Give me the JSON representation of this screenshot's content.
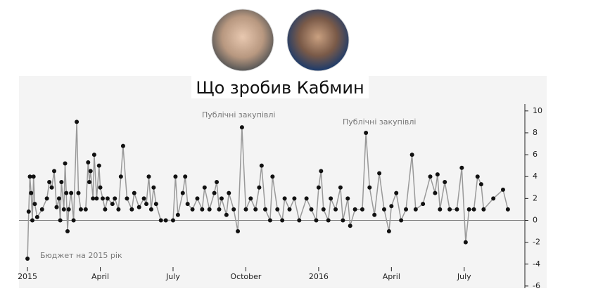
{
  "chart_data": {
    "type": "scatter-line",
    "title": "Що зробив Кабмин",
    "annotations": [
      "Бюджет на 2015 рік",
      "Публічні закупівлі",
      "Публічні закупівлі"
    ],
    "xlim": [
      -0.35,
      20.5
    ],
    "xticks": [
      {
        "value": 0,
        "label": "2015"
      },
      {
        "value": 3,
        "label": "April"
      },
      {
        "value": 6,
        "label": "July"
      },
      {
        "value": 9,
        "label": "October"
      },
      {
        "value": 12,
        "label": "2016"
      },
      {
        "value": 15,
        "label": "April"
      },
      {
        "value": 18,
        "label": "July"
      }
    ],
    "ylim": [
      -6.2,
      13.2
    ],
    "yticks": [
      -6,
      -4,
      -2,
      0,
      2,
      4,
      6,
      8,
      10
    ],
    "line_color": "#999999",
    "color": "#111111",
    "x": [
      0,
      0.05,
      0.1,
      0.15,
      0.2,
      0.25,
      0.3,
      0.4,
      0.6,
      0.8,
      0.9,
      1.0,
      1.1,
      1.2,
      1.3,
      1.35,
      1.4,
      1.5,
      1.55,
      1.6,
      1.65,
      1.7,
      1.8,
      1.9,
      2.03,
      2.1,
      2.2,
      2.4,
      2.5,
      2.55,
      2.6,
      2.7,
      2.75,
      2.85,
      2.95,
      3.0,
      3.1,
      3.2,
      3.3,
      3.5,
      3.6,
      3.75,
      3.85,
      3.94,
      4.1,
      4.3,
      4.4,
      4.6,
      4.8,
      4.9,
      5.0,
      5.1,
      5.2,
      5.3,
      5.5,
      5.7,
      6.0,
      6.1,
      6.2,
      6.4,
      6.5,
      6.6,
      6.8,
      7.0,
      7.2,
      7.3,
      7.5,
      7.7,
      7.8,
      7.9,
      8.0,
      8.2,
      8.3,
      8.5,
      8.67,
      8.84,
      9.0,
      9.2,
      9.4,
      9.55,
      9.65,
      9.8,
      10.0,
      10.1,
      10.3,
      10.5,
      10.6,
      10.8,
      11.0,
      11.2,
      11.5,
      11.7,
      11.9,
      12.0,
      12.1,
      12.2,
      12.4,
      12.5,
      12.7,
      12.9,
      13.0,
      13.2,
      13.3,
      13.5,
      13.8,
      13.95,
      14.1,
      14.3,
      14.5,
      14.7,
      14.9,
      15.0,
      15.2,
      15.4,
      15.6,
      15.85,
      16.0,
      16.3,
      16.6,
      16.8,
      16.9,
      17.0,
      17.2,
      17.4,
      17.7,
      17.9,
      18.06,
      18.2,
      18.4,
      18.55,
      18.7,
      18.8,
      19.2,
      19.6,
      19.8
    ],
    "values": [
      -3.5,
      0.8,
      4,
      2.5,
      0,
      4,
      1.5,
      0.3,
      1,
      2,
      3.5,
      3,
      4.5,
      1.2,
      2,
      0,
      3.5,
      1,
      5.2,
      2.5,
      -1,
      1,
      2.5,
      0,
      9,
      2.5,
      1,
      1,
      5.3,
      3.5,
      4.5,
      2,
      6,
      2,
      5,
      3,
      2,
      1,
      2,
      1.5,
      2,
      1,
      4,
      6.8,
      2,
      1,
      2.5,
      1.2,
      2,
      1.5,
      4,
      1,
      3,
      1.5,
      0,
      0,
      0,
      4,
      0.5,
      2.5,
      4,
      1.5,
      1,
      2,
      1,
      3,
      1,
      2.5,
      3.5,
      1,
      2,
      0.5,
      2.5,
      1,
      -1,
      8.5,
      1,
      2,
      1,
      3,
      5,
      1,
      0,
      4,
      1,
      0,
      2,
      1,
      2,
      0,
      2,
      1,
      0,
      3,
      4.5,
      1,
      0,
      2,
      1,
      3,
      0,
      2,
      -0.5,
      1,
      1,
      8,
      3,
      0.5,
      4.3,
      1,
      -1,
      1.3,
      2.5,
      0,
      1,
      6,
      1,
      1.5,
      4,
      2.5,
      4.2,
      1,
      3.5,
      1,
      1,
      4.8,
      -2,
      1,
      1,
      4,
      3.3,
      1,
      2,
      2.8,
      1
    ]
  }
}
